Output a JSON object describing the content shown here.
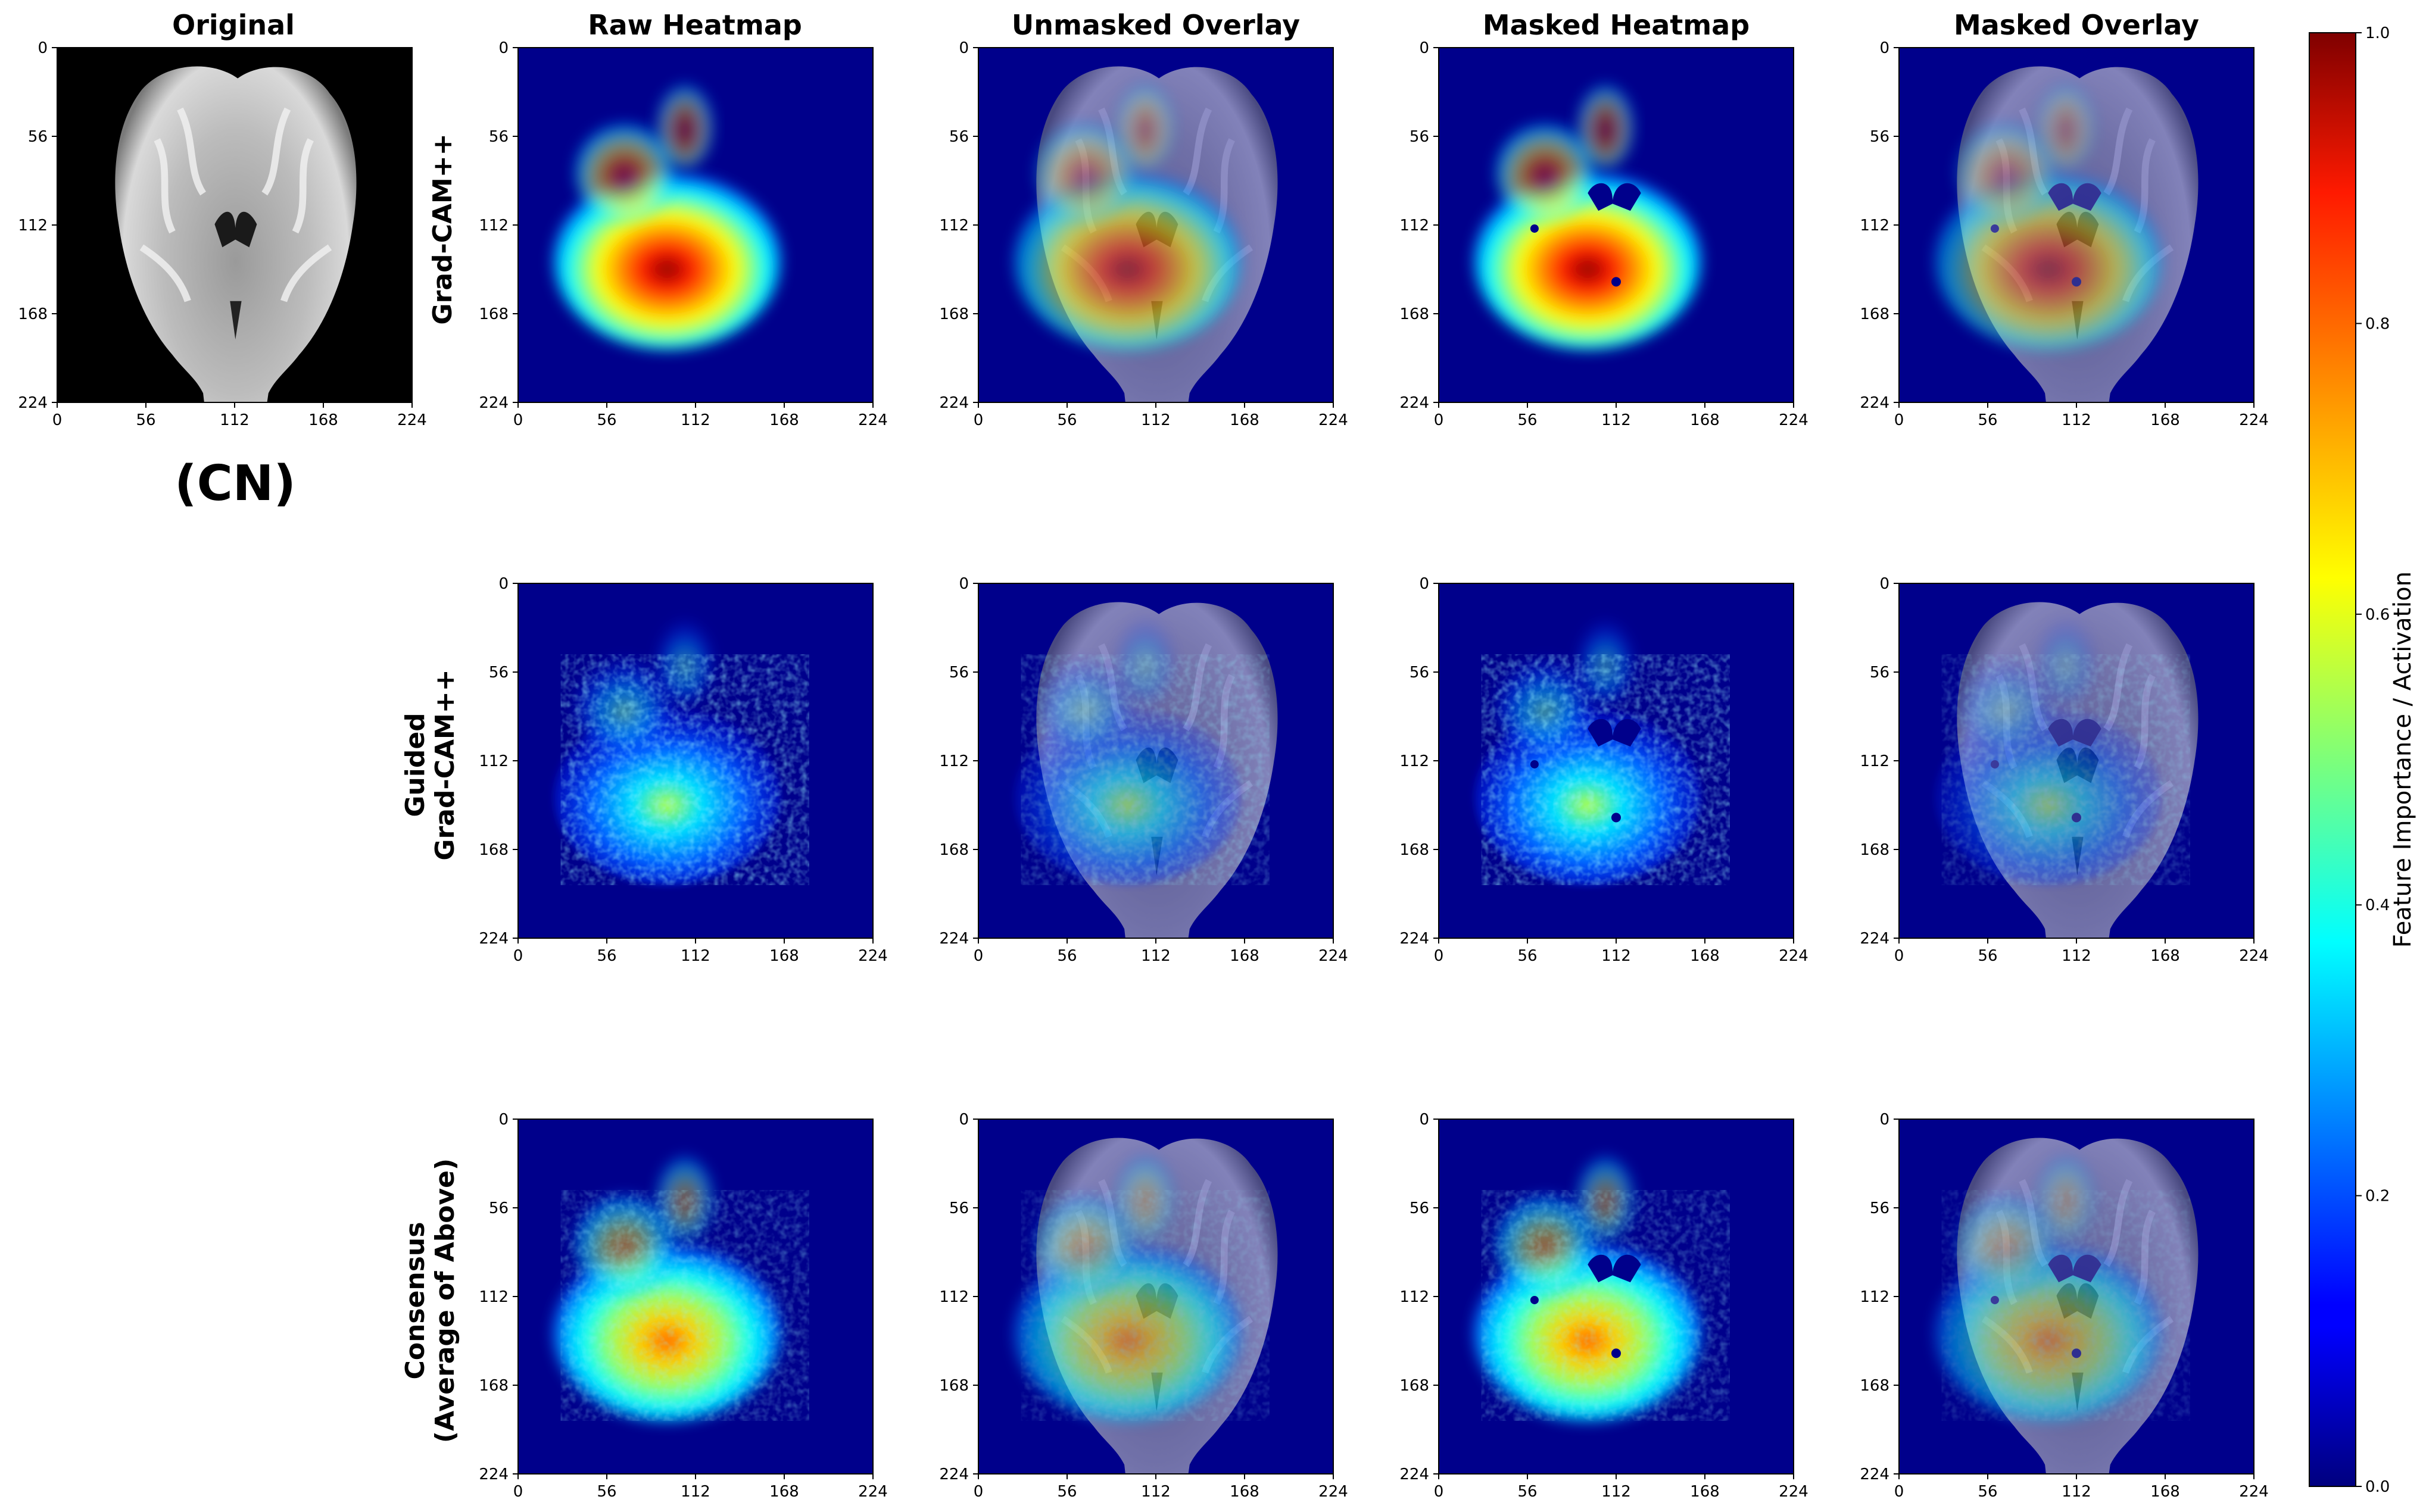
{
  "chart_data": {
    "type": "heatmap",
    "columns": [
      "Original",
      "Raw Heatmap",
      "Unmasked Overlay",
      "Masked Heatmap",
      "Masked Overlay"
    ],
    "rows": [
      {
        "label": [
          "Grad-CAM++"
        ],
        "peak": 1.0
      },
      {
        "label": [
          "Guided",
          "Grad-CAM++"
        ],
        "peak": 0.55
      },
      {
        "label": [
          "Consensus",
          "(Average of Above)"
        ],
        "peak": 0.75
      }
    ],
    "class_label": "(CN)",
    "axis_ticks": [
      "0",
      "56",
      "112",
      "168",
      "224"
    ],
    "xlim": [
      0,
      224
    ],
    "ylim": [
      224,
      0
    ],
    "colorbar": {
      "label": "Feature Importance / Activation",
      "ticks": [
        "0.0",
        "0.2",
        "0.4",
        "0.6",
        "0.8",
        "1.0"
      ],
      "range": [
        0,
        1
      ],
      "colormap": "jet"
    },
    "colors": {
      "background_map": "#00008b",
      "mri_background": "#000000"
    }
  }
}
